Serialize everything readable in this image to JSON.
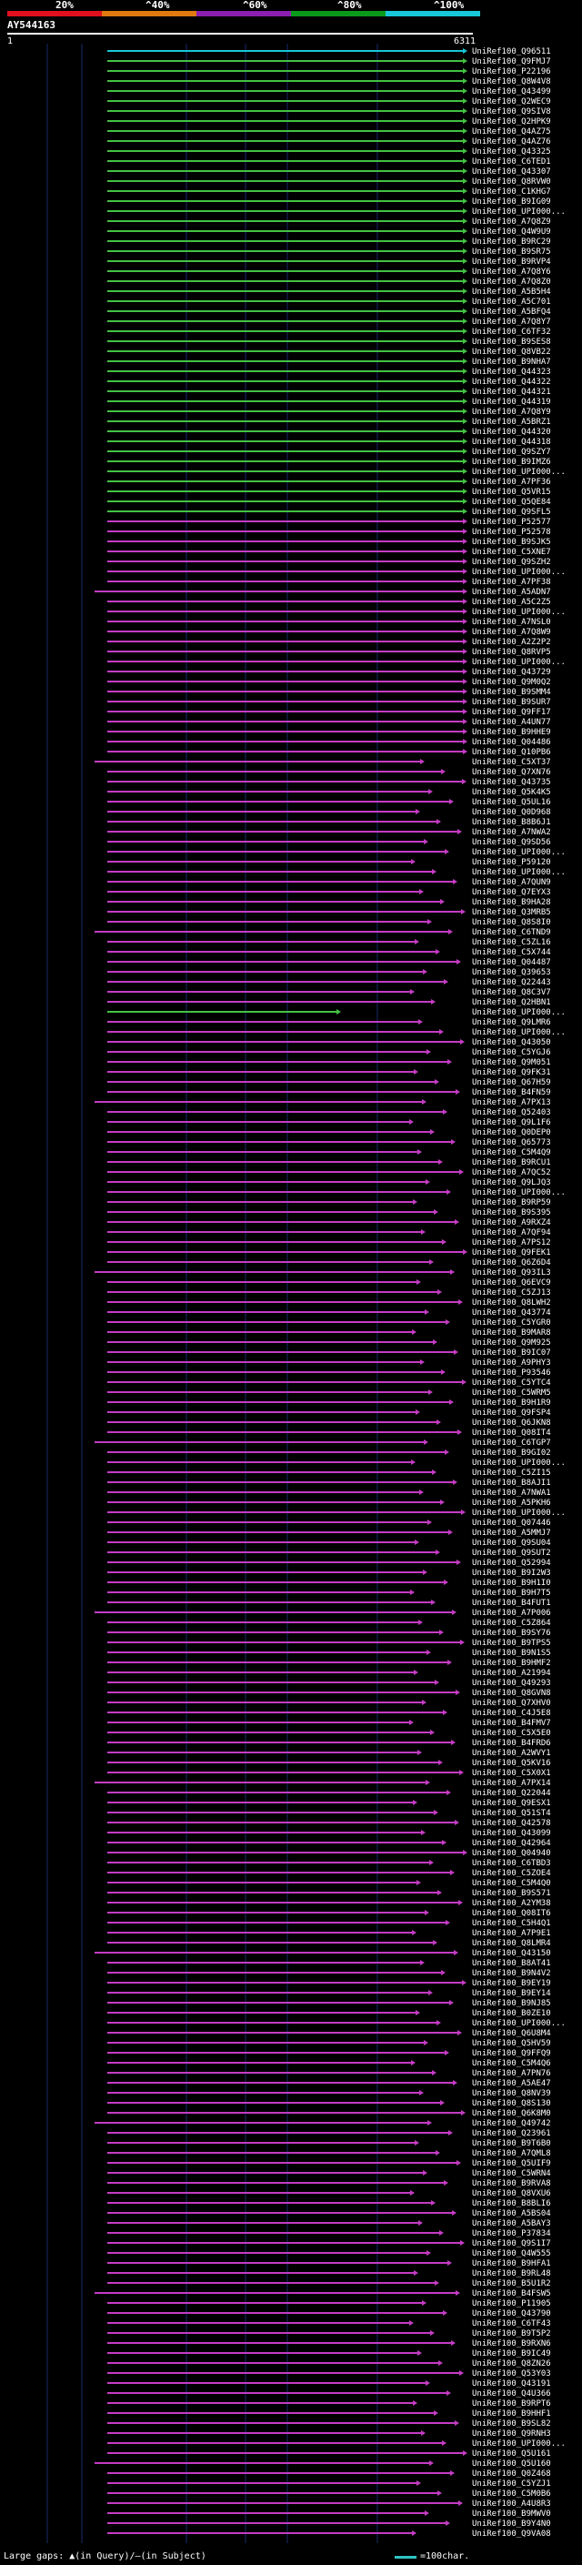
{
  "header": {
    "ticks": [
      "20%",
      "^40%",
      "^60%",
      "^80%",
      "^100%"
    ],
    "color_scale": [
      "#e0101e",
      "#e07a10",
      "#8a1fb0",
      "#0a9a1a",
      "#18c8d8"
    ],
    "query_name": "AY544163",
    "query_start": "1",
    "query_end": "6311"
  },
  "colors": {
    "cyan": "#19c6d6",
    "green": "#43c243",
    "magenta": "#c43cc4",
    "gridline": "#1a2a6a"
  },
  "legend": {
    "text": "Large gaps: ▲(in Query)/—(in Subject)",
    "scale": "=100char."
  },
  "hits": [
    "UniRef100_Q96511",
    "UniRef100_Q9FMJ7",
    "UniRef100_P22196",
    "UniRef100_Q8W4V8",
    "UniRef100_Q43499",
    "UniRef100_Q2WEC9",
    "UniRef100_Q9SIV8",
    "UniRef100_Q2HPK9",
    "UniRef100_Q4AZ75",
    "UniRef100_Q4AZ76",
    "UniRef100_Q43325",
    "UniRef100_C6TED1",
    "UniRef100_Q43307",
    "UniRef100_Q8RVW0",
    "UniRef100_C1KHG7",
    "UniRef100_B9IG09",
    "UniRef100_UPI000...",
    "UniRef100_A7Q8Z9",
    "UniRef100_Q4W9U9",
    "UniRef100_B9RC29",
    "UniRef100_B9SR75",
    "UniRef100_B9RVP4",
    "UniRef100_A7Q8Y6",
    "UniRef100_A7Q8Z0",
    "UniRef100_A5B5H4",
    "UniRef100_A5C701",
    "UniRef100_A5BFQ4",
    "UniRef100_A7Q8Y7",
    "UniRef100_C6TF32",
    "UniRef100_B9SES8",
    "UniRef100_Q8VB22",
    "UniRef100_B9NHA7",
    "UniRef100_Q44323",
    "UniRef100_Q44322",
    "UniRef100_Q44321",
    "UniRef100_Q44319",
    "UniRef100_A7Q8Y9",
    "UniRef100_A5BRZ1",
    "UniRef100_Q44320",
    "UniRef100_Q44318",
    "UniRef100_Q9SZY7",
    "UniRef100_B9IMZ6",
    "UniRef100_UPI000...",
    "UniRef100_A7PF36",
    "UniRef100_Q5VR15",
    "UniRef100_Q5QE84",
    "UniRef100_Q9SFL5",
    "UniRef100_P52577",
    "UniRef100_P52578",
    "UniRef100_B9SJK5",
    "UniRef100_C5XNE7",
    "UniRef100_Q9SZH2",
    "UniRef100_UPI000...",
    "UniRef100_A7PF38",
    "UniRef100_A5ADN7",
    "UniRef100_A5C2Z5",
    "UniRef100_UPI000...",
    "UniRef100_A7NSL0",
    "UniRef100_A7Q8W9",
    "UniRef100_A2Z2P2",
    "UniRef100_Q8RVP5",
    "UniRef100_UPI000...",
    "UniRef100_Q43729",
    "UniRef100_Q9M0Q2",
    "UniRef100_B9SMM4",
    "UniRef100_B9SUR7",
    "UniRef100_Q9FF17",
    "UniRef100_A4UN77",
    "UniRef100_B9HHE9",
    "UniRef100_Q04486",
    "UniRef100_Q10PB6",
    "UniRef100_C5XT37",
    "UniRef100_Q7XN76",
    "UniRef100_Q43735",
    "UniRef100_Q5K4K5",
    "UniRef100_Q5UL16",
    "UniRef100_Q0D968",
    "UniRef100_B8B6J1",
    "UniRef100_A7NWA2",
    "UniRef100_Q9SD56",
    "UniRef100_UPI000...",
    "UniRef100_P59120",
    "UniRef100_UPI000...",
    "UniRef100_A7QUN9",
    "UniRef100_Q7EYX3",
    "UniRef100_B9HA28",
    "UniRef100_Q3MRB5",
    "UniRef100_Q8S8I0",
    "UniRef100_C6TND9",
    "UniRef100_C5ZL16",
    "UniRef100_C5X744",
    "UniRef100_Q04487",
    "UniRef100_Q39653",
    "UniRef100_Q22443",
    "UniRef100_Q8C3V7",
    "UniRef100_Q2HBN1",
    "UniRef100_UPI000...",
    "UniRef100_Q9LMR6",
    "UniRef100_UPI000...",
    "UniRef100_Q43050",
    "UniRef100_C5YGJ6",
    "UniRef100_Q9M051",
    "UniRef100_Q9FK31",
    "UniRef100_Q67H59",
    "UniRef100_B4FN59",
    "UniRef100_A7PX13",
    "UniRef100_Q52403",
    "UniRef100_Q9L1F6",
    "UniRef100_Q0DEP0",
    "UniRef100_Q65773",
    "UniRef100_C5M4Q9",
    "UniRef100_B9RCU1",
    "UniRef100_A7QC52",
    "UniRef100_Q9LJQ3",
    "UniRef100_UPI000...",
    "UniRef100_B9RP59",
    "UniRef100_B9S395",
    "UniRef100_A9RXZ4",
    "UniRef100_A7QF94",
    "UniRef100_A7PS12",
    "UniRef100_Q9FEK1",
    "UniRef100_Q6Z6D4",
    "UniRef100_Q93IL3",
    "UniRef100_Q6EVC9",
    "UniRef100_C5ZJ13",
    "UniRef100_Q8LWH2",
    "UniRef100_Q43774",
    "UniRef100_C5YGR0",
    "UniRef100_B9MAR8",
    "UniRef100_Q9M925",
    "UniRef100_B9IC07",
    "UniRef100_A9PHY3",
    "UniRef100_P93546",
    "UniRef100_C5YTC4",
    "UniRef100_C5WRM5",
    "UniRef100_B9H1R9",
    "UniRef100_Q9FSP4",
    "UniRef100_Q6JKN8",
    "UniRef100_Q08IT4",
    "UniRef100_C6TGP7",
    "UniRef100_B9GI02",
    "UniRef100_UPI000...",
    "UniRef100_C5ZI15",
    "UniRef100_B8AJI1",
    "UniRef100_A7NWA1",
    "UniRef100_A5PKH6",
    "UniRef100_UPI000...",
    "UniRef100_Q07446",
    "UniRef100_A5MMJ7",
    "UniRef100_Q9SU04",
    "UniRef100_Q9SUT2",
    "UniRef100_Q52994",
    "UniRef100_B9I2W3",
    "UniRef100_B9H1I0",
    "UniRef100_B9H7T5",
    "UniRef100_B4FUT1",
    "UniRef100_A7P006",
    "UniRef100_C5Z864",
    "UniRef100_B9SY76",
    "UniRef100_B9TPS5",
    "UniRef100_B9N1S5",
    "UniRef100_B9HMF2",
    "UniRef100_A21994",
    "UniRef100_Q49293",
    "UniRef100_Q8GVN8",
    "UniRef100_Q7XHV0",
    "UniRef100_C4J5E8",
    "UniRef100_B4FMV7",
    "UniRef100_C5X5E0",
    "UniRef100_B4FRD6",
    "UniRef100_A2WVY1",
    "UniRef100_Q5KV16",
    "UniRef100_C5X0X1",
    "UniRef100_A7PX14",
    "UniRef100_Q22044",
    "UniRef100_Q9ESX1",
    "UniRef100_Q51ST4",
    "UniRef100_Q42578",
    "UniRef100_Q43099",
    "UniRef100_Q42964",
    "UniRef100_Q04940",
    "UniRef100_C6TBD3",
    "UniRef100_C5ZOE4",
    "UniRef100_C5M4Q0",
    "UniRef100_B9S571",
    "UniRef100_A2YM38",
    "UniRef100_Q08IT6",
    "UniRef100_C5H4Q1",
    "UniRef100_A7P9E1",
    "UniRef100_Q8LMR4",
    "UniRef100_Q43150",
    "UniRef100_B8AT41",
    "UniRef100_B9N4V2",
    "UniRef100_B9EY19",
    "UniRef100_B9EY14",
    "UniRef100_B9NJ85",
    "UniRef100_B0ZE10",
    "UniRef100_UPI000...",
    "UniRef100_Q6U8M4",
    "UniRef100_Q5HV59",
    "UniRef100_Q9FFQ9",
    "UniRef100_C5M4Q6",
    "UniRef100_A7PN76",
    "UniRef100_A5AE47",
    "UniRef100_Q8NV39",
    "UniRef100_Q8S130",
    "UniRef100_Q6K8M0",
    "UniRef100_Q49742",
    "UniRef100_Q23961",
    "UniRef100_B9T6B0",
    "UniRef100_A7QML8",
    "UniRef100_Q5UIF9",
    "UniRef100_C5WRN4",
    "UniRef100_B9RVA8",
    "UniRef100_Q8VXU6",
    "UniRef100_B8BLI6",
    "UniRef100_A5BS04",
    "UniRef100_A5BAY3",
    "UniRef100_P37834",
    "UniRef100_Q9S1I7",
    "UniRef100_Q4W555",
    "UniRef100_B9HFA1",
    "UniRef100_B9RL48",
    "UniRef100_B5U1R2",
    "UniRef100_B4FSW5",
    "UniRef100_P11905",
    "UniRef100_Q43790",
    "UniRef100_C6TF43",
    "UniRef100_B9T5P2",
    "UniRef100_B9RXN6",
    "UniRef100_B9IC49",
    "UniRef100_Q8ZN26",
    "UniRef100_Q53Y03",
    "UniRef100_Q43191",
    "UniRef100_Q4U366",
    "UniRef100_B9RPT6",
    "UniRef100_B9HHF1",
    "UniRef100_B9SL82",
    "UniRef100_Q9RNH3",
    "UniRef100_UPI000...",
    "UniRef100_Q5U161",
    "UniRef100_Q5U160",
    "UniRef100_Q0Z468",
    "UniRef100_C5YZJ1",
    "UniRef100_C5M0B6",
    "UniRef100_A4U8R3",
    "UniRef100_B9MWV0",
    "UniRef100_B9Y4N0",
    "UniRef100_Q9VA08"
  ]
}
